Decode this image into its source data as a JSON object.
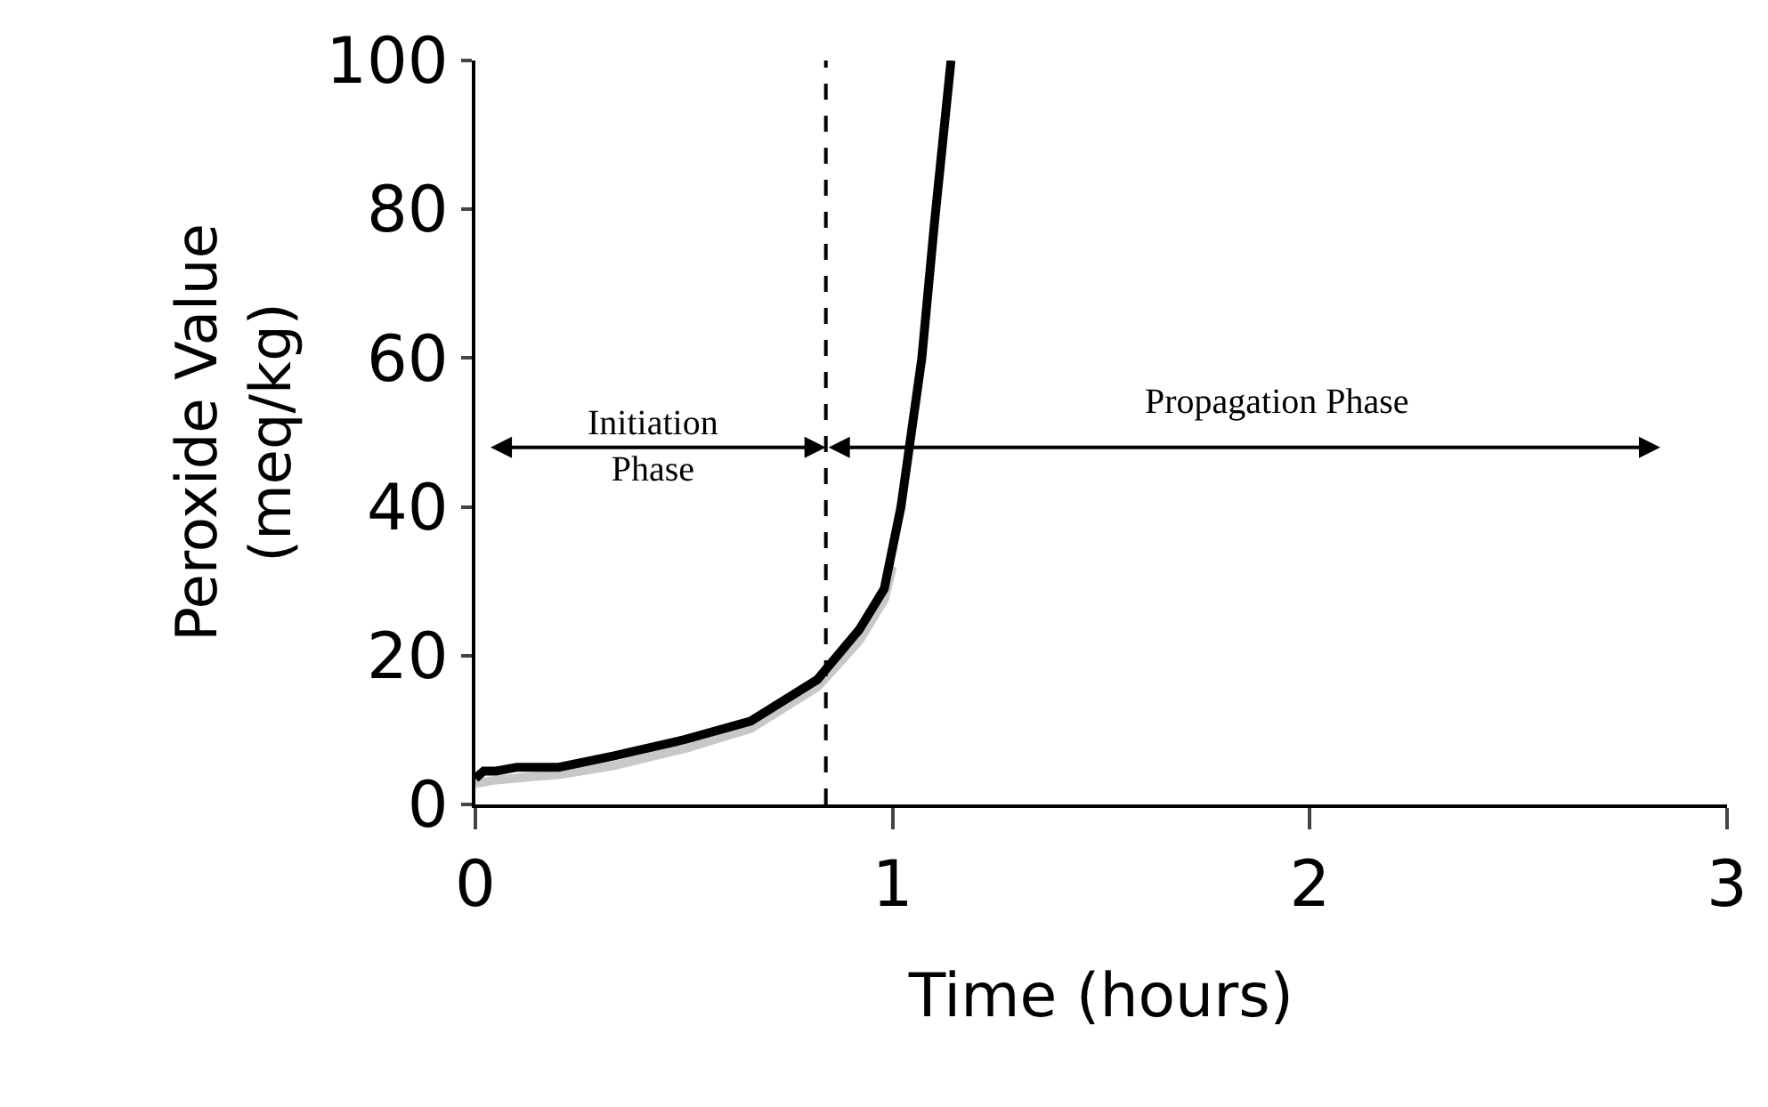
{
  "chart_data": {
    "type": "line",
    "xlabel": "Time (hours)",
    "ylabel": "Peroxide Value\n(meq/kg)",
    "series": [
      {
        "color": "#c8c8c8",
        "x": [
          0,
          0.05,
          0.15,
          0.2,
          0.33,
          0.5,
          0.66,
          0.82,
          0.92,
          0.98,
          1.0
        ],
        "values": [
          2.8,
          3.3,
          3.8,
          4,
          5.2,
          7.5,
          10.2,
          15.8,
          22,
          27.5,
          32
        ]
      },
      {
        "color": "#000000",
        "x": [
          0,
          0.02,
          0.05,
          0.1,
          0.15,
          0.2,
          0.33,
          0.5,
          0.66,
          0.82,
          0.92,
          0.98,
          1.02,
          1.07,
          1.1,
          1.14
        ],
        "values": [
          3.5,
          4.5,
          4.5,
          5,
          5,
          5,
          6.5,
          8.7,
          11.2,
          16.8,
          23.5,
          29,
          40,
          60,
          78,
          100
        ]
      }
    ],
    "xlim": [
      0,
      3
    ],
    "xticks": [
      0,
      1,
      2,
      3
    ],
    "ylim": [
      0,
      100
    ],
    "yticks": [
      0,
      20,
      40,
      60,
      80,
      100
    ],
    "marker": "none",
    "line_style": "solid",
    "ref_lines": [
      {
        "axis": "x",
        "value": 0.84,
        "line_style": "dashed",
        "color": "#000000"
      }
    ],
    "annotations": [
      "Initiation\nPhase",
      "Propagation Phase"
    ]
  }
}
